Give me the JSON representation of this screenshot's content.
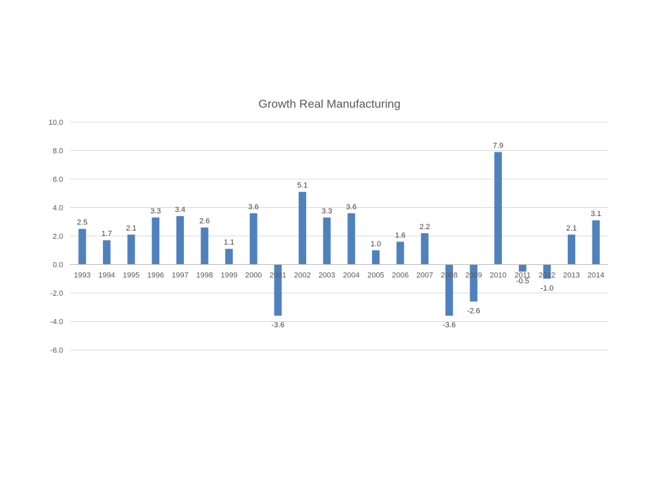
{
  "chart_data": {
    "type": "bar",
    "title": "Growth Real Manufacturing",
    "xlabel": "",
    "ylabel": "",
    "ylim": [
      -6.0,
      10.0
    ],
    "ytick_step": 2.0,
    "yticks": [
      "10.0",
      "8.0",
      "6.0",
      "4.0",
      "2.0",
      "0.0",
      "-2.0",
      "-4.0",
      "-6.0"
    ],
    "grid": true,
    "legend": "none",
    "bar_color": "#4f81bd",
    "categories": [
      "1993",
      "1994",
      "1995",
      "1996",
      "1997",
      "1998",
      "1999",
      "2000",
      "2001",
      "2002",
      "2003",
      "2004",
      "2005",
      "2006",
      "2007",
      "2008",
      "2009",
      "2010",
      "2011",
      "2012",
      "2013",
      "2014"
    ],
    "values": [
      2.5,
      1.7,
      2.1,
      3.3,
      3.4,
      2.6,
      1.1,
      3.6,
      -3.6,
      5.1,
      3.3,
      3.6,
      1.0,
      1.6,
      2.2,
      -3.6,
      -2.6,
      7.9,
      -0.5,
      -1.0,
      2.1,
      3.1
    ],
    "data_labels": [
      "2.5",
      "1.7",
      "2.1",
      "3.3",
      "3.4",
      "2.6",
      "1.1",
      "3.6",
      "-3.6",
      "5.1",
      "3.3",
      "3.6",
      "1.0",
      "1.6",
      "2.2",
      "-3.6",
      "-2.6",
      "7.9",
      "-0.5",
      "-1.0",
      "2.1",
      "3.1"
    ]
  }
}
